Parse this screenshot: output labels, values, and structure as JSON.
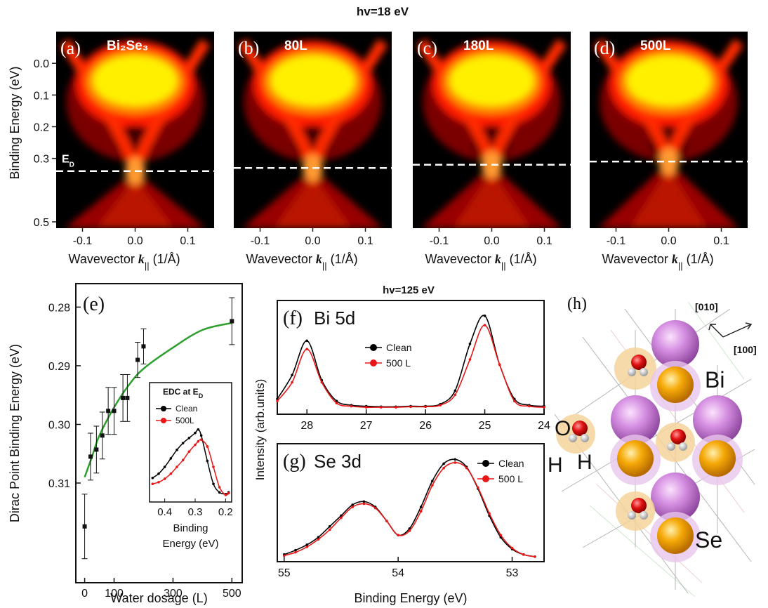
{
  "figure_title": "hv=18 eV",
  "chart_data": [
    {
      "type": "arpes",
      "panel": "(a)",
      "label": "Bi₂Se₃",
      "xlim": [
        -0.15,
        0.15
      ],
      "ylim": [
        0.52,
        -0.1
      ],
      "xticks": [
        -0.1,
        {
          "value": 0,
          "label": "0.0"
        },
        0.1
      ],
      "yticks": [
        {
          "value": 0,
          "label": "0.0"
        },
        0.1,
        0.2,
        0.3,
        0.5
      ],
      "ylabel": "Binding Energy  (eV)",
      "xlabel": [
        "Wavevector ",
        "k",
        "||",
        " (1/Å)"
      ],
      "dirac_point": 0.34,
      "dirac_label": [
        "E",
        "D"
      ]
    },
    {
      "type": "arpes",
      "panel": "(b)",
      "label": "80L",
      "xlim": [
        -0.15,
        0.15
      ],
      "ylim": [
        0.52,
        -0.1
      ],
      "xticks": [
        -0.1,
        {
          "value": 0,
          "label": "0.0"
        },
        0.1
      ],
      "xlabel": [
        "Wavevector ",
        "k",
        "||",
        " (1/Å)"
      ],
      "dirac_point": 0.33
    },
    {
      "type": "arpes",
      "panel": "(c)",
      "label": "180L",
      "xlim": [
        -0.15,
        0.15
      ],
      "ylim": [
        0.52,
        -0.1
      ],
      "xticks": [
        -0.1,
        {
          "value": 0,
          "label": "0.0"
        },
        0.1
      ],
      "xlabel": [
        "Wavevector ",
        "k",
        "||",
        " (1/Å)"
      ],
      "dirac_point": 0.32
    },
    {
      "type": "arpes",
      "panel": "(d)",
      "label": "500L",
      "xlim": [
        -0.15,
        0.15
      ],
      "ylim": [
        0.52,
        -0.1
      ],
      "xticks": [
        -0.1,
        {
          "value": 0,
          "label": "0.0"
        },
        0.1
      ],
      "xlabel": [
        "Wavevector ",
        "k",
        "||",
        " (1/Å)"
      ],
      "dirac_point": 0.31
    },
    {
      "type": "scatter",
      "panel": "(e)",
      "ylabel": "Dirac Point Binding Energy  (eV)",
      "xlabel": "Water dosage (L)",
      "xlim": [
        -30,
        535
      ],
      "ylim": [
        0.327,
        0.276
      ],
      "xticks": [
        0,
        100,
        300,
        500
      ],
      "yticks": [
        0.28,
        0.29,
        {
          "value": 0.3,
          "label": "0.30"
        },
        0.31
      ],
      "x": [
        0,
        20,
        40,
        60,
        80,
        100,
        130,
        145,
        180,
        200,
        500
      ],
      "values": [
        0.3174,
        0.3055,
        0.3043,
        0.3019,
        0.2977,
        0.2977,
        0.2955,
        0.2955,
        0.289,
        0.2867,
        0.2824
      ],
      "errors": [
        0.0055,
        0.004,
        0.004,
        0.004,
        0.004,
        0.004,
        0.004,
        0.004,
        0.003,
        0.003,
        0.004
      ],
      "color": "#111111",
      "fit": {
        "x": [
          0,
          25,
          50,
          100,
          150,
          200,
          300,
          400,
          500
        ],
        "values": [
          0.309,
          0.3055,
          0.3019,
          0.2971,
          0.2933,
          0.2905,
          0.2869,
          0.2839,
          0.2827
        ],
        "color": "#2e9e2e"
      },
      "inset": {
        "title": [
          "EDC at E",
          "D"
        ],
        "xlabel": [
          "Binding",
          "Energy  (eV)"
        ],
        "xlim": [
          0.45,
          0.18
        ],
        "ylim": [
          0,
          1
        ],
        "xticks": [
          0.4,
          0.3,
          0.2
        ],
        "x": [
          0.44,
          0.42,
          0.4,
          0.38,
          0.36,
          0.34,
          0.32,
          0.3,
          0.29,
          0.28,
          0.26,
          0.24,
          0.22,
          0.2,
          0.19
        ],
        "series": [
          {
            "name": "Clean",
            "color": "#000000",
            "values": [
              0.25,
              0.3,
              0.38,
              0.48,
              0.58,
              0.66,
              0.72,
              0.78,
              0.82,
              0.75,
              0.45,
              0.18,
              0.08,
              0.06,
              0.08
            ]
          },
          {
            "name": "500L",
            "color": "#e81818",
            "values": [
              0.18,
              0.2,
              0.24,
              0.3,
              0.38,
              0.46,
              0.56,
              0.64,
              0.68,
              0.7,
              0.62,
              0.38,
              0.14,
              0.05,
              0.07
            ]
          }
        ]
      }
    },
    {
      "type": "spectra",
      "panel": "(f)",
      "label": "Bi 5d",
      "title": "hv=125 eV",
      "ylabel": "Intensity (arb.units)",
      "xlim": [
        28.5,
        24
      ],
      "ylim": [
        0,
        1
      ],
      "xticks": [
        28,
        27,
        26,
        25,
        24
      ],
      "x": [
        28.5,
        28.25,
        28,
        27.75,
        27.5,
        27.25,
        27,
        26.75,
        26.5,
        26.25,
        26,
        25.75,
        25.5,
        25.25,
        25,
        24.75,
        24.5,
        24.25,
        24
      ],
      "series": [
        {
          "name": "Clean",
          "color": "#000000",
          "values": [
            0.12,
            0.35,
            0.68,
            0.3,
            0.1,
            0.06,
            0.05,
            0.045,
            0.045,
            0.05,
            0.05,
            0.07,
            0.2,
            0.65,
            0.92,
            0.45,
            0.12,
            0.06,
            0.05
          ]
        },
        {
          "name": "500 L",
          "color": "#e81818",
          "values": [
            0.1,
            0.28,
            0.6,
            0.28,
            0.08,
            0.05,
            0.04,
            0.04,
            0.04,
            0.045,
            0.045,
            0.06,
            0.16,
            0.5,
            0.83,
            0.45,
            0.1,
            0.05,
            0.04
          ]
        }
      ]
    },
    {
      "type": "spectra",
      "panel": "(g)",
      "label": "Se 3d",
      "xlabel": "Binding Energy  (eV)",
      "xlim": [
        55.06,
        52.72
      ],
      "ylim": [
        0,
        1
      ],
      "xticks": [
        55,
        54,
        53
      ],
      "x": [
        55,
        54.9,
        54.8,
        54.7,
        54.6,
        54.5,
        54.4,
        54.3,
        54.2,
        54.1,
        54,
        53.9,
        53.8,
        53.7,
        53.6,
        53.5,
        53.4,
        53.3,
        53.2,
        53.1,
        53,
        52.9,
        52.8
      ],
      "series": [
        {
          "name": "Clean",
          "color": "#000000",
          "values": [
            0.04,
            0.08,
            0.13,
            0.2,
            0.3,
            0.4,
            0.5,
            0.53,
            0.48,
            0.35,
            0.22,
            0.28,
            0.48,
            0.72,
            0.88,
            0.92,
            0.85,
            0.65,
            0.4,
            0.2,
            0.09,
            0.04,
            0.02
          ]
        },
        {
          "name": "500 L",
          "color": "#e81818",
          "values": [
            0.03,
            0.06,
            0.11,
            0.18,
            0.27,
            0.38,
            0.48,
            0.51,
            0.47,
            0.35,
            0.22,
            0.26,
            0.44,
            0.68,
            0.84,
            0.89,
            0.84,
            0.66,
            0.42,
            0.22,
            0.1,
            0.04,
            0.02
          ]
        }
      ]
    }
  ],
  "diagram": {
    "panel": "(h)",
    "directions": [
      "[010]",
      "[100]"
    ],
    "atoms": [
      "Bi",
      "O",
      "H",
      "H",
      "Se"
    ]
  }
}
